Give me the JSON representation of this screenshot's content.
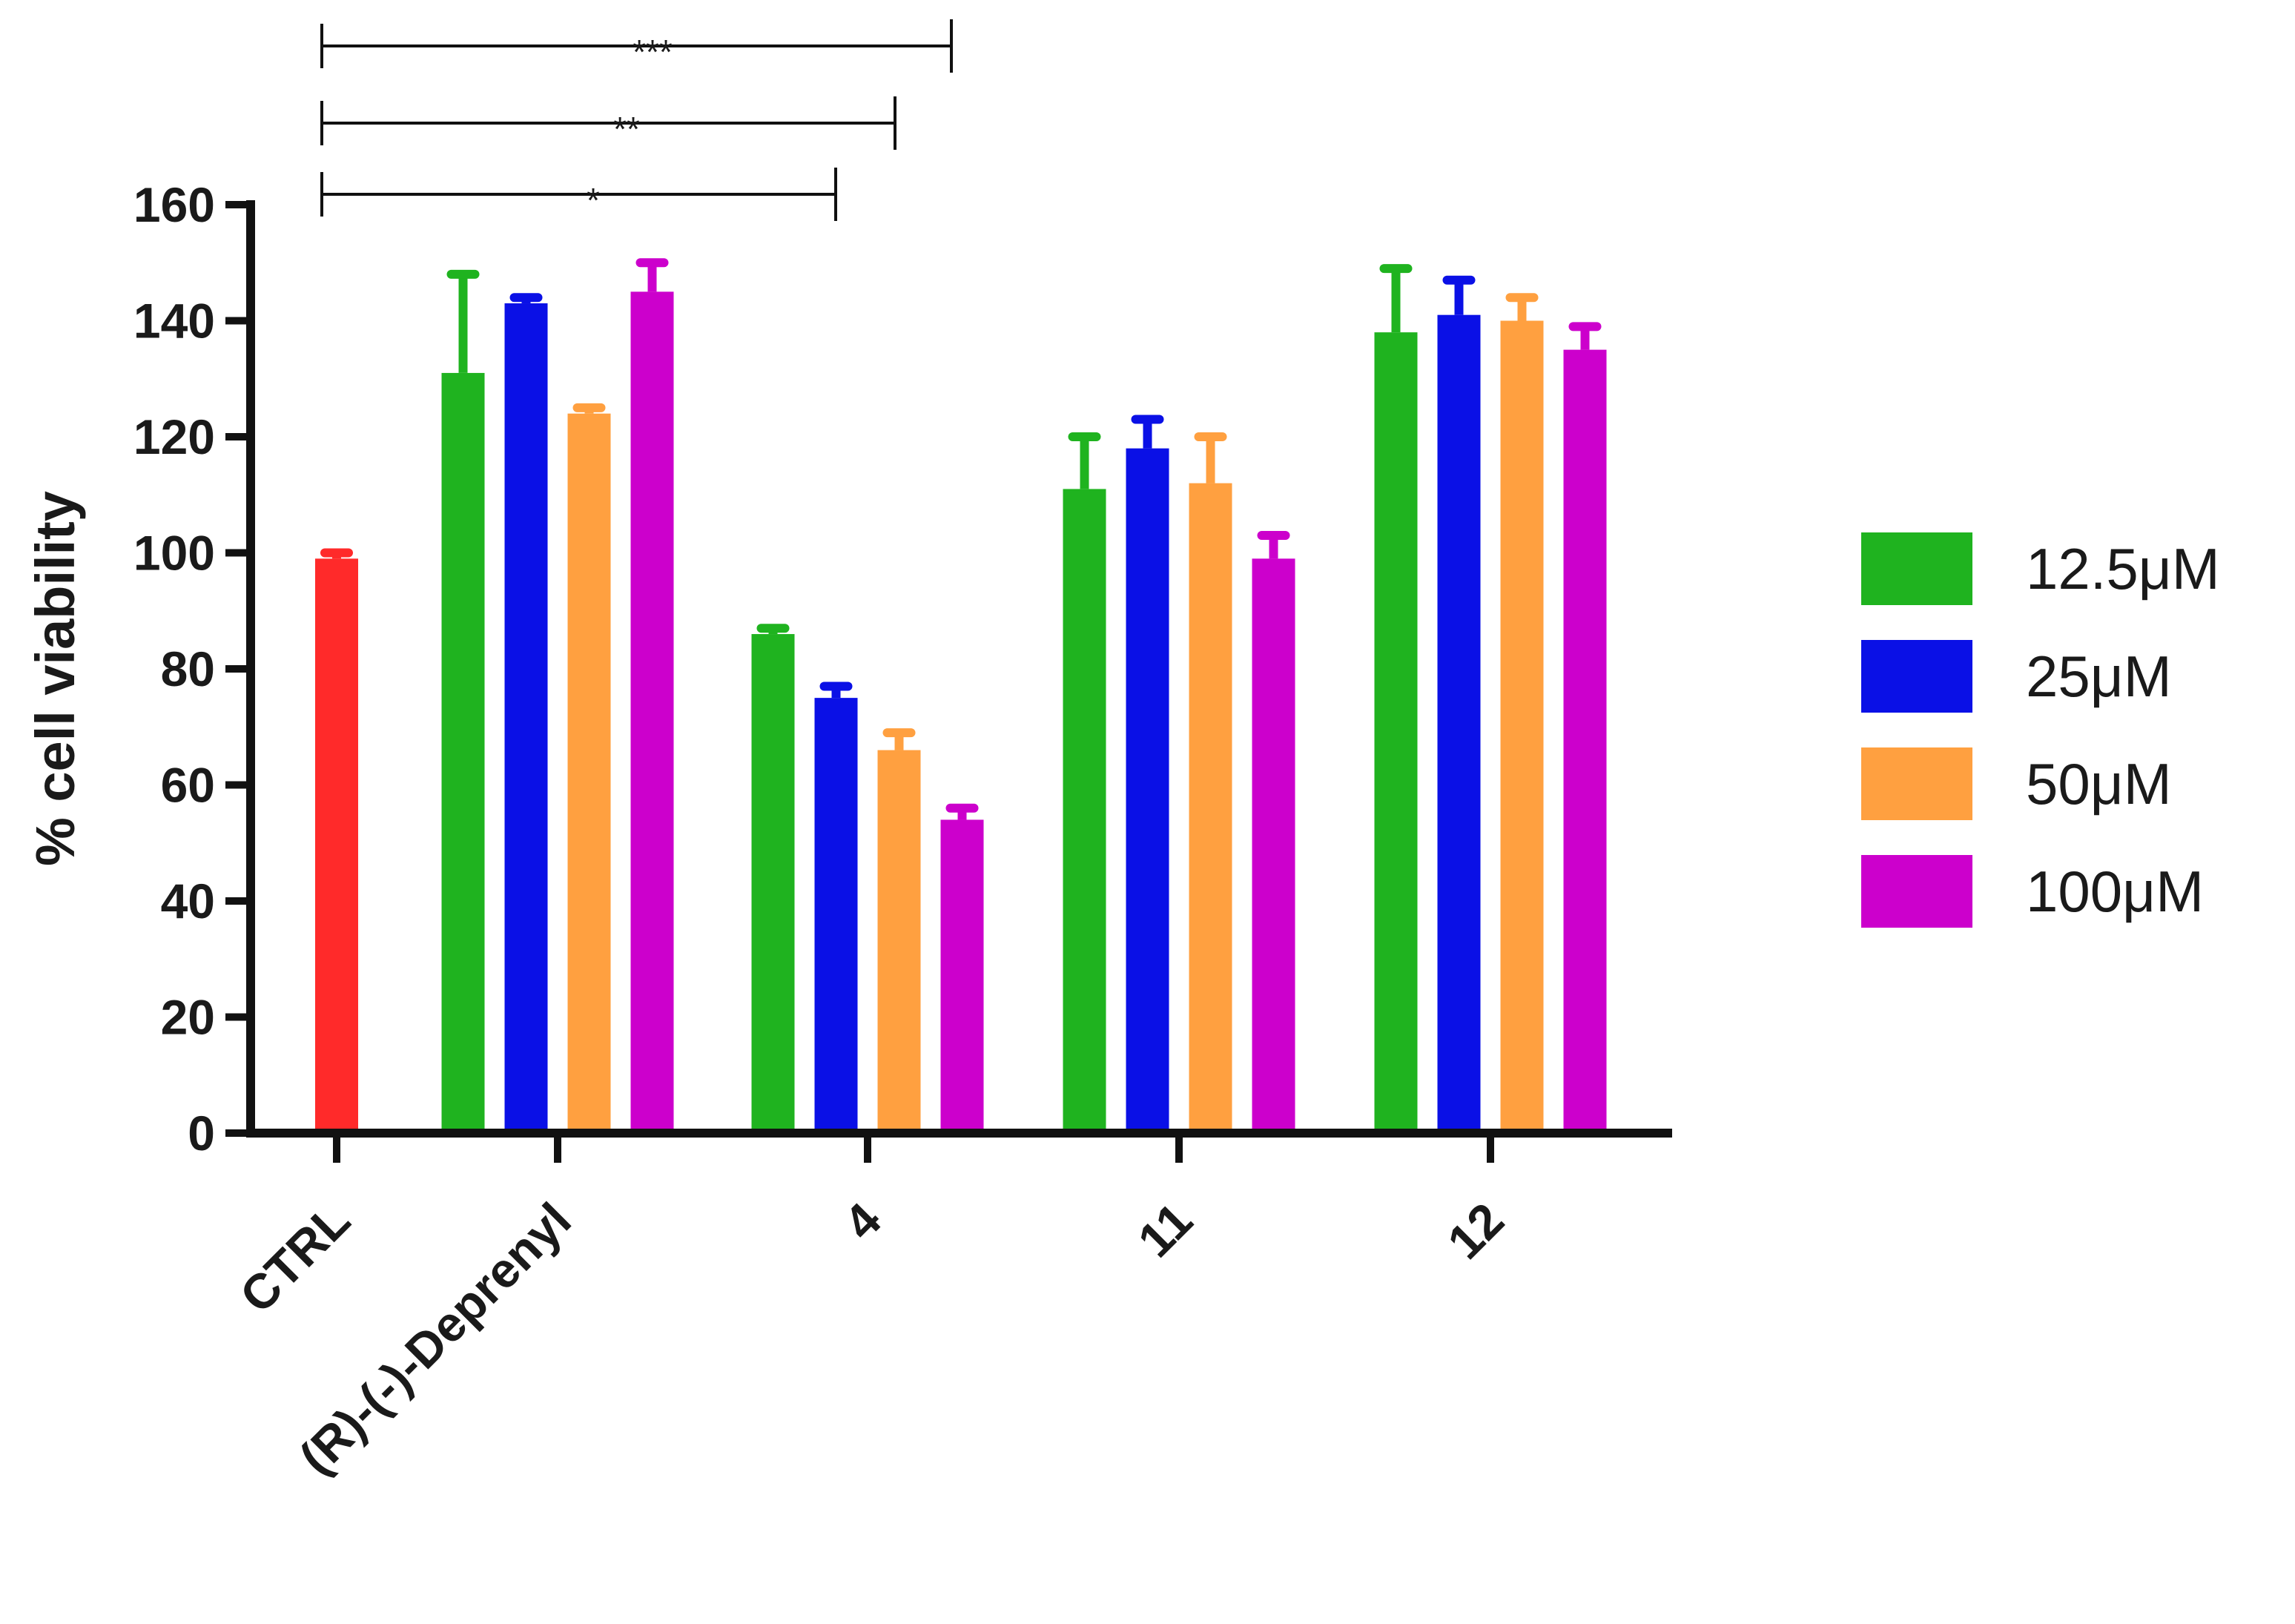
{
  "chart_data": {
    "type": "bar",
    "ylabel": "% cell viability",
    "ylim": [
      0,
      160
    ],
    "yticks": [
      0,
      20,
      40,
      60,
      80,
      100,
      120,
      140,
      160
    ],
    "grid": false,
    "legend_position": "right",
    "categories": [
      "CTRL",
      "(R)-(-)-Deprenyl",
      "4",
      "11",
      "12"
    ],
    "control": {
      "category": "CTRL",
      "value": 99,
      "error": 1,
      "color": "#ff2a2a"
    },
    "series": [
      {
        "name": "12.5μM",
        "color": "#1fb31f",
        "values": [
          null,
          131,
          86,
          111,
          138
        ],
        "errors": [
          null,
          17,
          1,
          9,
          11
        ]
      },
      {
        "name": "25μM",
        "color": "#0a10e6",
        "values": [
          null,
          143,
          75,
          118,
          141
        ],
        "errors": [
          null,
          1,
          2,
          5,
          6
        ]
      },
      {
        "name": "50μM",
        "color": "#ffa040",
        "values": [
          null,
          124,
          66,
          112,
          140
        ],
        "errors": [
          null,
          1,
          3,
          8,
          4
        ]
      },
      {
        "name": "100μM",
        "color": "#cc00cc",
        "values": [
          null,
          145,
          54,
          99,
          135
        ],
        "errors": [
          null,
          5,
          2,
          4,
          4
        ]
      }
    ],
    "significance": [
      {
        "label": "***",
        "from": "CTRL",
        "to": "12"
      },
      {
        "label": "**",
        "from": "CTRL",
        "to": "11"
      },
      {
        "label": "*",
        "from": "CTRL",
        "to": "4"
      }
    ]
  }
}
